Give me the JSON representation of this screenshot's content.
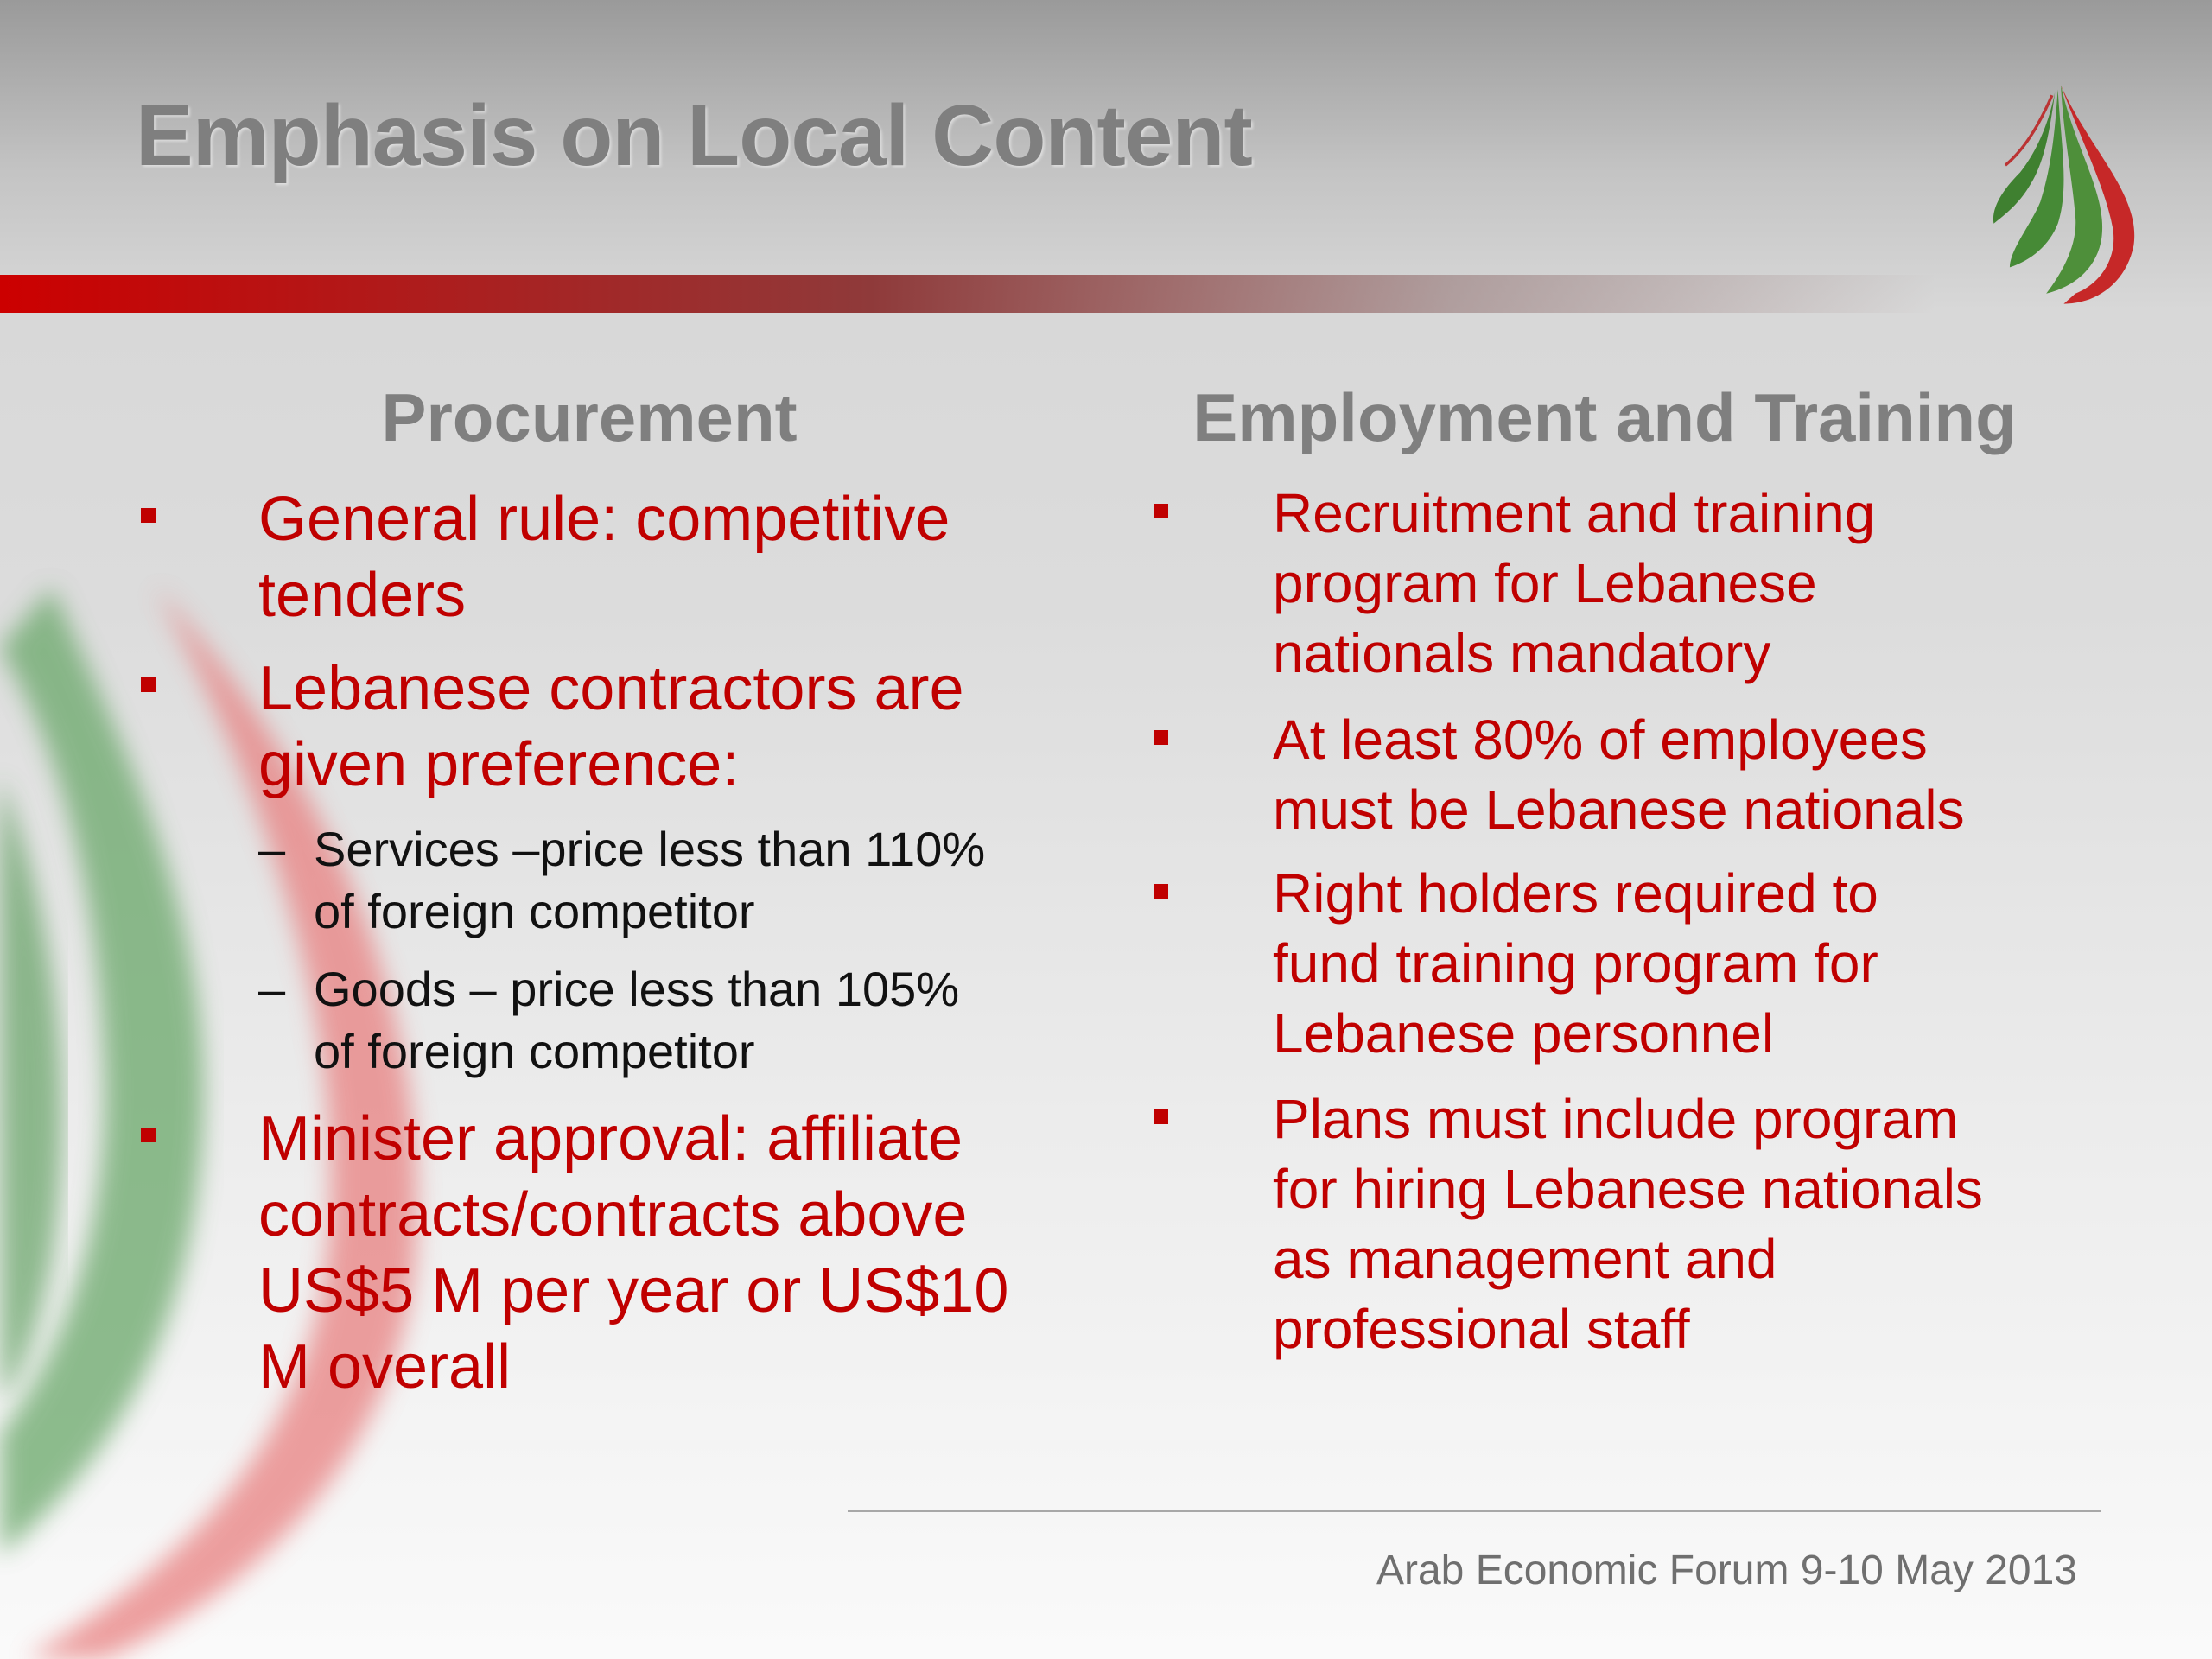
{
  "slide": {
    "title": "Emphasis on Local Content",
    "accent_color": "#c00000",
    "logo_icon": "green-red-droplet-logo",
    "footer": "Arab Economic Forum 9-10 May 2013"
  },
  "procurement": {
    "heading": "Procurement",
    "items": [
      {
        "lines": [
          "General rule: competitive",
          "tenders"
        ]
      },
      {
        "lines": [
          "Lebanese contractors are",
          "given preference:"
        ],
        "subitems": [
          {
            "dash": "–",
            "lines": [
              "Services –price  less than 110%",
              "of foreign competitor"
            ]
          },
          {
            "dash": "–",
            "lines": [
              "Goods – price less than 105%",
              "of foreign competitor"
            ]
          }
        ]
      },
      {
        "lines": [
          "Minister approval: affiliate",
          "contracts/contracts above",
          "US$5 M per year or US$10",
          "M overall"
        ]
      }
    ]
  },
  "employment": {
    "heading": "Employment and Training",
    "items": [
      {
        "lines": [
          "Recruitment and training",
          "program for Lebanese",
          "nationals mandatory"
        ]
      },
      {
        "lines": [
          "At least 80% of employees",
          "must be Lebanese nationals"
        ]
      },
      {
        "lines": [
          "Right holders required to",
          "fund training program for",
          "Lebanese personnel"
        ]
      },
      {
        "lines": [
          "Plans must include program",
          "for hiring Lebanese nationals",
          "as management and",
          "professional staff"
        ]
      }
    ]
  }
}
